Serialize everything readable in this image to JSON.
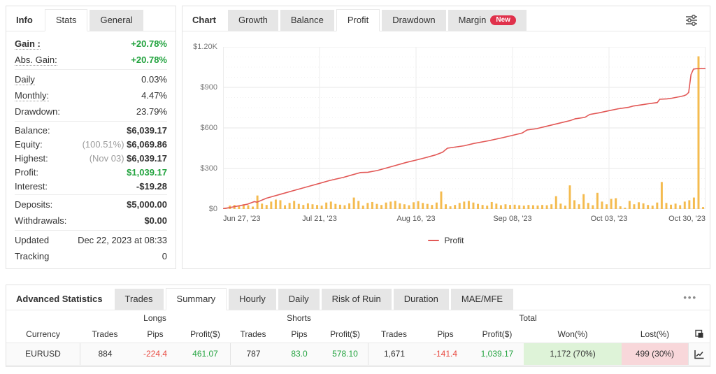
{
  "colors": {
    "positive_green": "#23a33f",
    "negative_red": "#e8483f",
    "line_red": "#e25856",
    "bar_orange": "#f4bb4f",
    "badge_red": "#e0314b",
    "won_bg": "#def3d8",
    "lost_bg": "#f8d7da"
  },
  "icons": {
    "settings": "sliders-icon",
    "more": "more-options-icon",
    "copy": "copy-icon",
    "row_chart": "chart-icon"
  },
  "stats_panel": {
    "title": "Info",
    "tabs": [
      {
        "label": "Stats",
        "active": true
      },
      {
        "label": "General",
        "active": false
      }
    ],
    "groups": [
      {
        "rows": [
          {
            "label": "Gain :",
            "value": "+20.78%",
            "vclass": "green",
            "bold_label": true,
            "dotted": true
          },
          {
            "label": "Abs. Gain:",
            "value": "+20.78%",
            "vclass": "green",
            "dotted": true
          }
        ]
      },
      {
        "rows": [
          {
            "label": "Daily",
            "value": "0.03%",
            "vclass": "normal",
            "dotted": true
          },
          {
            "label": "Monthly:",
            "value": "4.47%",
            "vclass": "normal",
            "dotted": true
          },
          {
            "label": "Drawdown:",
            "value": "23.79%",
            "vclass": "normal"
          }
        ]
      },
      {
        "rows": [
          {
            "label": "Balance:",
            "value": "$6,039.17"
          },
          {
            "label": "Equity:",
            "prefix": "(100.51%) ",
            "value": "$6,069.86"
          },
          {
            "label": "Highest:",
            "prefix": "(Nov 03) ",
            "value": "$6,039.17"
          },
          {
            "label": "Profit:",
            "value": "$1,039.17",
            "vclass": "green"
          },
          {
            "label": "Interest:",
            "value": "-$19.28"
          }
        ]
      },
      {
        "rows": [
          {
            "label": "Deposits:",
            "value": "$5,000.00"
          },
          {
            "label": "Withdrawals:",
            "value": "$0.00"
          }
        ]
      },
      {
        "rows": [
          {
            "label": "Updated",
            "value": "Dec 22, 2023 at 08:33",
            "vclass": "normal"
          },
          {
            "label": "Tracking",
            "value": "0",
            "vclass": "normal"
          }
        ]
      }
    ]
  },
  "chart_panel": {
    "title": "Chart",
    "tabs": [
      {
        "label": "Growth"
      },
      {
        "label": "Balance"
      },
      {
        "label": "Profit",
        "active": true
      },
      {
        "label": "Drawdown"
      },
      {
        "label": "Margin",
        "badge": "New"
      }
    ],
    "chart_data": {
      "type": "combo",
      "title": "Profit",
      "ylim": [
        0,
        1200
      ],
      "y_ticks": [
        {
          "v": 0,
          "label": "$0"
        },
        {
          "v": 300,
          "label": "$300"
        },
        {
          "v": 600,
          "label": "$600"
        },
        {
          "v": 900,
          "label": "$900"
        },
        {
          "v": 1200,
          "label": "$1.20K"
        }
      ],
      "x_ticks": [
        {
          "pos": 0.0,
          "label": "Jun 27, '23"
        },
        {
          "pos": 0.2,
          "label": "Jul 21, '23"
        },
        {
          "pos": 0.4,
          "label": "Aug 16, '23"
        },
        {
          "pos": 0.6,
          "label": "Sep 08, '23"
        },
        {
          "pos": 0.8,
          "label": "Oct 03, '23"
        },
        {
          "pos": 1.0,
          "label": "Oct 30, '23"
        }
      ],
      "legend": [
        {
          "label": "Profit",
          "color": "#e25856"
        }
      ],
      "series": [
        {
          "name": "Profit",
          "type": "line",
          "color": "#e25856",
          "points": [
            [
              0,
              2
            ],
            [
              0.02,
              15
            ],
            [
              0.05,
              35
            ],
            [
              0.065,
              55
            ],
            [
              0.07,
              50
            ],
            [
              0.09,
              80
            ],
            [
              0.12,
              110
            ],
            [
              0.15,
              140
            ],
            [
              0.18,
              170
            ],
            [
              0.2,
              190
            ],
            [
              0.22,
              210
            ],
            [
              0.25,
              235
            ],
            [
              0.27,
              255
            ],
            [
              0.285,
              270
            ],
            [
              0.3,
              272
            ],
            [
              0.32,
              285
            ],
            [
              0.35,
              315
            ],
            [
              0.38,
              345
            ],
            [
              0.4,
              362
            ],
            [
              0.42,
              380
            ],
            [
              0.44,
              400
            ],
            [
              0.455,
              420
            ],
            [
              0.465,
              450
            ],
            [
              0.48,
              458
            ],
            [
              0.5,
              468
            ],
            [
              0.52,
              485
            ],
            [
              0.55,
              505
            ],
            [
              0.58,
              528
            ],
            [
              0.6,
              545
            ],
            [
              0.62,
              562
            ],
            [
              0.63,
              585
            ],
            [
              0.65,
              595
            ],
            [
              0.67,
              612
            ],
            [
              0.7,
              638
            ],
            [
              0.72,
              655
            ],
            [
              0.73,
              668
            ],
            [
              0.75,
              678
            ],
            [
              0.76,
              700
            ],
            [
              0.78,
              712
            ],
            [
              0.8,
              728
            ],
            [
              0.82,
              742
            ],
            [
              0.84,
              752
            ],
            [
              0.85,
              762
            ],
            [
              0.87,
              772
            ],
            [
              0.88,
              778
            ],
            [
              0.9,
              788
            ],
            [
              0.905,
              812
            ],
            [
              0.92,
              815
            ],
            [
              0.93,
              820
            ],
            [
              0.945,
              830
            ],
            [
              0.955,
              838
            ],
            [
              0.96,
              845
            ],
            [
              0.965,
              862
            ],
            [
              0.97,
              995
            ],
            [
              0.975,
              1035
            ],
            [
              0.98,
              1038
            ],
            [
              1,
              1040
            ]
          ]
        },
        {
          "name": "Daily profit",
          "type": "bar",
          "color": "#f4bb4f",
          "values": [
            10,
            25,
            30,
            22,
            35,
            28,
            18,
            100,
            40,
            30,
            55,
            70,
            65,
            28,
            45,
            60,
            38,
            30,
            42,
            35,
            30,
            25,
            48,
            55,
            38,
            32,
            28,
            42,
            85,
            60,
            25,
            45,
            52,
            38,
            30,
            48,
            55,
            60,
            42,
            35,
            28,
            50,
            58,
            45,
            38,
            30,
            48,
            130,
            35,
            20,
            30,
            45,
            55,
            60,
            48,
            38,
            30,
            25,
            52,
            40,
            28,
            35,
            30,
            32,
            28,
            25,
            30,
            28,
            26,
            30,
            28,
            35,
            95,
            40,
            25,
            175,
            65,
            35,
            110,
            45,
            28,
            120,
            55,
            35,
            75,
            80,
            20,
            10,
            60,
            35,
            50,
            42,
            30,
            25,
            48,
            200,
            45,
            32,
            40,
            28,
            55,
            65,
            85,
            1130,
            15
          ]
        }
      ]
    }
  },
  "advanced_panel": {
    "title": "Advanced Statistics",
    "more_label": "•••",
    "tabs": [
      {
        "label": "Trades"
      },
      {
        "label": "Summary",
        "active": true
      },
      {
        "label": "Hourly"
      },
      {
        "label": "Daily"
      },
      {
        "label": "Risk of Ruin"
      },
      {
        "label": "Duration"
      },
      {
        "label": "MAE/MFE"
      }
    ],
    "table": {
      "group_headers": {
        "longs": "Longs",
        "shorts": "Shorts",
        "total": "Total"
      },
      "columns": {
        "currency": "Currency",
        "trades": "Trades",
        "pips": "Pips",
        "profit": "Profit($)",
        "won": "Won(%)",
        "lost": "Lost(%)"
      },
      "row": {
        "currency": "EURUSD",
        "longs": {
          "trades": "884",
          "pips": "-224.4",
          "profit": "461.07"
        },
        "shorts": {
          "trades": "787",
          "pips": "83.0",
          "profit": "578.10"
        },
        "total": {
          "trades": "1,671",
          "pips": "-141.4",
          "profit": "1,039.17",
          "won": "1,172 (70%)",
          "lost": "499 (30%)"
        }
      }
    }
  }
}
